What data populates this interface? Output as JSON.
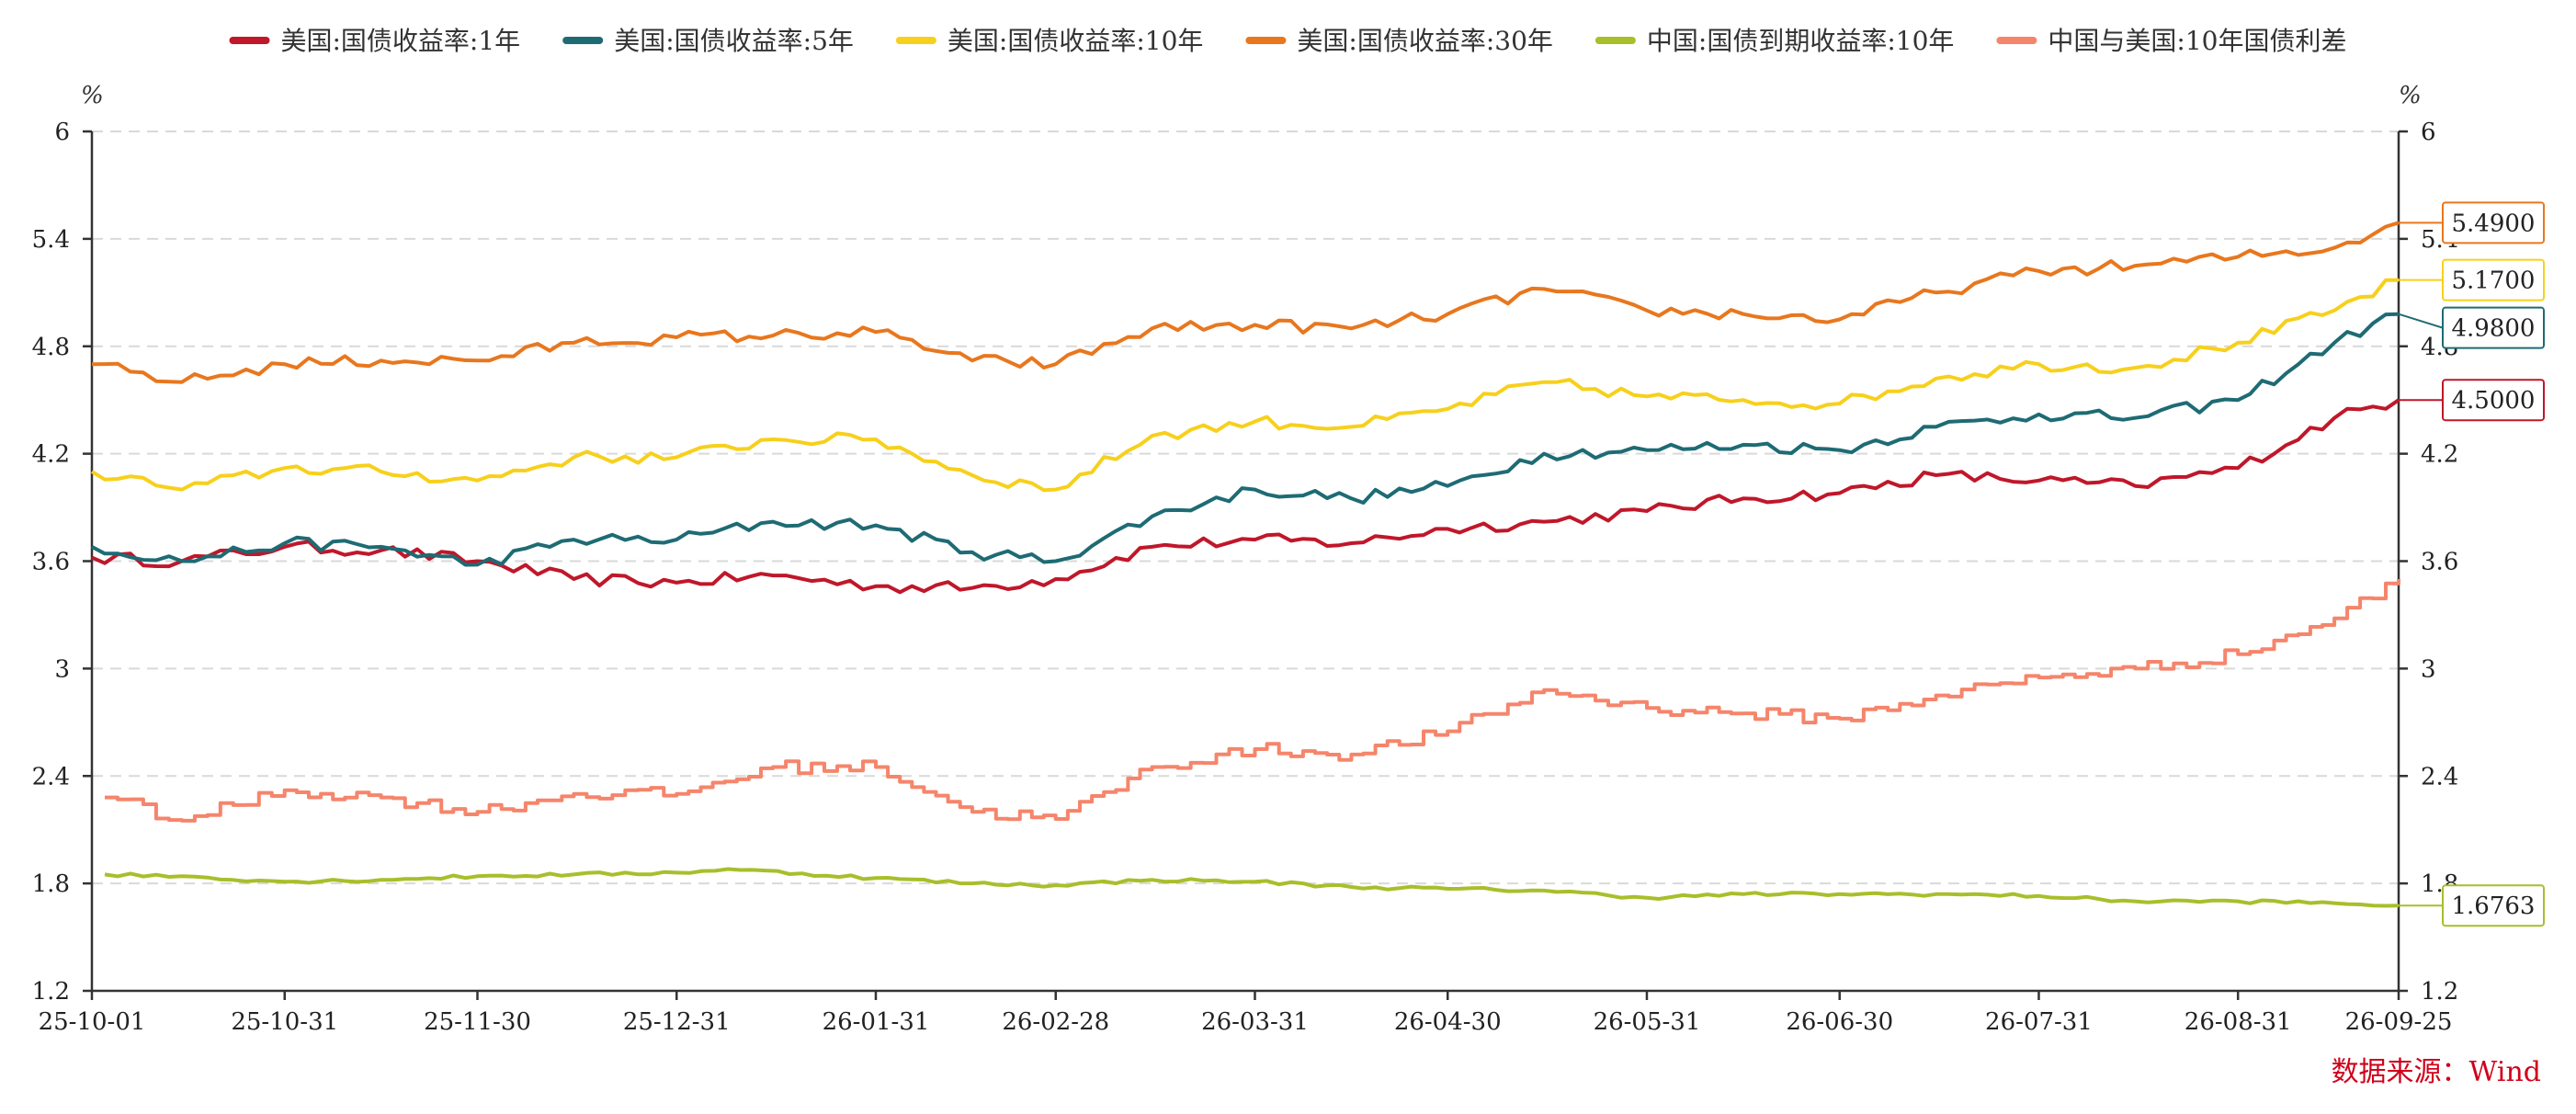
{
  "chart_data": {
    "type": "line",
    "x_range": [
      "25-10-01",
      "26-09-25"
    ],
    "x_ticks": [
      "25-10-01",
      "25-10-31",
      "25-11-30",
      "25-12-31",
      "26-01-31",
      "26-02-28",
      "26-03-31",
      "26-04-30",
      "26-05-31",
      "26-06-30",
      "26-07-31",
      "26-08-31",
      "26-09-25"
    ],
    "ylim": [
      1.2,
      6
    ],
    "y_ticks": [
      "1.2",
      "1.8",
      "2.4",
      "3",
      "3.6",
      "4.2",
      "4.8",
      "5.4",
      "6"
    ],
    "y_unit_left": "%",
    "y_unit_right": "%",
    "grid": true,
    "legend_position": "top-center",
    "source": "数据来源：Wind",
    "series": [
      {
        "name": "美国:国债收益率:1年",
        "color": "#c0172a",
        "end_label": "4.5000",
        "points": [
          [
            "25-10-01",
            3.62
          ],
          [
            "25-10-15",
            3.6
          ],
          [
            "25-10-31",
            3.68
          ],
          [
            "25-11-15",
            3.66
          ],
          [
            "25-11-30",
            3.6
          ],
          [
            "25-12-15",
            3.5
          ],
          [
            "25-12-31",
            3.48
          ],
          [
            "26-01-15",
            3.52
          ],
          [
            "26-01-31",
            3.46
          ],
          [
            "26-02-15",
            3.45
          ],
          [
            "26-02-28",
            3.5
          ],
          [
            "26-03-15",
            3.68
          ],
          [
            "26-03-31",
            3.72
          ],
          [
            "26-04-15",
            3.7
          ],
          [
            "26-04-30",
            3.78
          ],
          [
            "26-05-15",
            3.82
          ],
          [
            "26-05-31",
            3.88
          ],
          [
            "26-06-15",
            3.95
          ],
          [
            "26-06-30",
            3.98
          ],
          [
            "26-07-15",
            4.08
          ],
          [
            "26-07-31",
            4.05
          ],
          [
            "26-08-15",
            4.02
          ],
          [
            "26-08-31",
            4.12
          ],
          [
            "26-09-15",
            4.4
          ],
          [
            "26-09-25",
            4.5
          ]
        ]
      },
      {
        "name": "美国:国债收益率:5年",
        "color": "#1e6b74",
        "end_label": "4.9800",
        "points": [
          [
            "25-10-01",
            3.68
          ],
          [
            "25-10-15",
            3.6
          ],
          [
            "25-10-31",
            3.7
          ],
          [
            "25-11-15",
            3.68
          ],
          [
            "25-11-30",
            3.58
          ],
          [
            "25-12-15",
            3.72
          ],
          [
            "25-12-31",
            3.72
          ],
          [
            "26-01-15",
            3.82
          ],
          [
            "26-01-31",
            3.8
          ],
          [
            "26-02-15",
            3.65
          ],
          [
            "26-02-28",
            3.6
          ],
          [
            "26-03-15",
            3.85
          ],
          [
            "26-03-31",
            4.0
          ],
          [
            "26-04-15",
            3.95
          ],
          [
            "26-04-30",
            4.02
          ],
          [
            "26-05-15",
            4.2
          ],
          [
            "26-05-31",
            4.22
          ],
          [
            "26-06-15",
            4.25
          ],
          [
            "26-06-30",
            4.22
          ],
          [
            "26-07-15",
            4.35
          ],
          [
            "26-07-31",
            4.42
          ],
          [
            "26-08-15",
            4.4
          ],
          [
            "26-08-31",
            4.5
          ],
          [
            "26-09-15",
            4.82
          ],
          [
            "26-09-25",
            4.98
          ]
        ]
      },
      {
        "name": "美国:国债收益率:10年",
        "color": "#f7d01c",
        "end_label": "5.1700",
        "points": [
          [
            "25-10-01",
            4.1
          ],
          [
            "25-10-15",
            4.0
          ],
          [
            "25-10-31",
            4.12
          ],
          [
            "25-11-15",
            4.1
          ],
          [
            "25-11-30",
            4.05
          ],
          [
            "25-12-15",
            4.18
          ],
          [
            "25-12-31",
            4.18
          ],
          [
            "26-01-15",
            4.28
          ],
          [
            "26-01-31",
            4.28
          ],
          [
            "26-02-15",
            4.08
          ],
          [
            "26-02-28",
            4.0
          ],
          [
            "26-03-15",
            4.3
          ],
          [
            "26-03-31",
            4.38
          ],
          [
            "26-04-15",
            4.35
          ],
          [
            "26-04-30",
            4.45
          ],
          [
            "26-05-15",
            4.6
          ],
          [
            "26-05-31",
            4.52
          ],
          [
            "26-06-15",
            4.5
          ],
          [
            "26-06-30",
            4.48
          ],
          [
            "26-07-15",
            4.62
          ],
          [
            "26-07-31",
            4.7
          ],
          [
            "26-08-15",
            4.68
          ],
          [
            "26-08-31",
            4.82
          ],
          [
            "26-09-15",
            5.0
          ],
          [
            "26-09-25",
            5.17
          ]
        ]
      },
      {
        "name": "美国:国债收益率:30年",
        "color": "#e8771e",
        "end_label": "5.4900",
        "points": [
          [
            "25-10-01",
            4.7
          ],
          [
            "25-10-15",
            4.6
          ],
          [
            "25-10-31",
            4.7
          ],
          [
            "25-11-15",
            4.72
          ],
          [
            "25-11-30",
            4.72
          ],
          [
            "25-12-15",
            4.82
          ],
          [
            "25-12-31",
            4.85
          ],
          [
            "26-01-15",
            4.86
          ],
          [
            "26-01-31",
            4.88
          ],
          [
            "26-02-15",
            4.72
          ],
          [
            "26-02-28",
            4.7
          ],
          [
            "26-03-15",
            4.9
          ],
          [
            "26-03-31",
            4.92
          ],
          [
            "26-04-15",
            4.9
          ],
          [
            "26-04-30",
            4.98
          ],
          [
            "26-05-15",
            5.12
          ],
          [
            "26-05-31",
            5.0
          ],
          [
            "26-06-15",
            4.98
          ],
          [
            "26-06-30",
            4.95
          ],
          [
            "26-07-15",
            5.1
          ],
          [
            "26-07-31",
            5.22
          ],
          [
            "26-08-15",
            5.25
          ],
          [
            "26-08-31",
            5.3
          ],
          [
            "26-09-15",
            5.35
          ],
          [
            "26-09-25",
            5.49
          ]
        ]
      },
      {
        "name": "中国:国债到期收益率:10年",
        "color": "#a9be2b",
        "end_label": "1.6763",
        "points": [
          [
            "25-10-03",
            1.85
          ],
          [
            "25-10-15",
            1.84
          ],
          [
            "25-10-31",
            1.81
          ],
          [
            "25-11-15",
            1.82
          ],
          [
            "25-11-30",
            1.84
          ],
          [
            "25-12-15",
            1.85
          ],
          [
            "25-12-31",
            1.86
          ],
          [
            "26-01-08",
            1.88
          ],
          [
            "26-01-31",
            1.83
          ],
          [
            "26-02-15",
            1.8
          ],
          [
            "26-02-28",
            1.79
          ],
          [
            "26-03-15",
            1.82
          ],
          [
            "26-03-31",
            1.81
          ],
          [
            "26-04-15",
            1.78
          ],
          [
            "26-04-30",
            1.77
          ],
          [
            "26-05-15",
            1.76
          ],
          [
            "26-05-31",
            1.72
          ],
          [
            "26-06-15",
            1.74
          ],
          [
            "26-06-30",
            1.74
          ],
          [
            "26-07-15",
            1.74
          ],
          [
            "26-07-31",
            1.73
          ],
          [
            "26-08-15",
            1.7
          ],
          [
            "26-08-31",
            1.7
          ],
          [
            "26-09-15",
            1.69
          ],
          [
            "26-09-25",
            1.6763
          ]
        ]
      },
      {
        "name": "中国与美国:10年国债利差",
        "color": "#f5856b",
        "points": [
          [
            "25-10-03",
            2.28
          ],
          [
            "25-10-15",
            2.15
          ],
          [
            "25-10-31",
            2.32
          ],
          [
            "25-11-15",
            2.28
          ],
          [
            "25-11-30",
            2.2
          ],
          [
            "25-12-15",
            2.3
          ],
          [
            "25-12-31",
            2.3
          ],
          [
            "26-01-15",
            2.45
          ],
          [
            "26-01-31",
            2.45
          ],
          [
            "26-02-15",
            2.2
          ],
          [
            "26-02-28",
            2.16
          ],
          [
            "26-03-15",
            2.45
          ],
          [
            "26-03-31",
            2.55
          ],
          [
            "26-04-15",
            2.52
          ],
          [
            "26-04-30",
            2.65
          ],
          [
            "26-05-15",
            2.88
          ],
          [
            "26-05-31",
            2.78
          ],
          [
            "26-06-15",
            2.75
          ],
          [
            "26-06-30",
            2.72
          ],
          [
            "26-07-15",
            2.85
          ],
          [
            "26-07-31",
            2.95
          ],
          [
            "26-08-15",
            3.0
          ],
          [
            "26-08-31",
            3.08
          ],
          [
            "26-09-15",
            3.28
          ],
          [
            "26-09-25",
            3.5
          ]
        ]
      }
    ]
  }
}
